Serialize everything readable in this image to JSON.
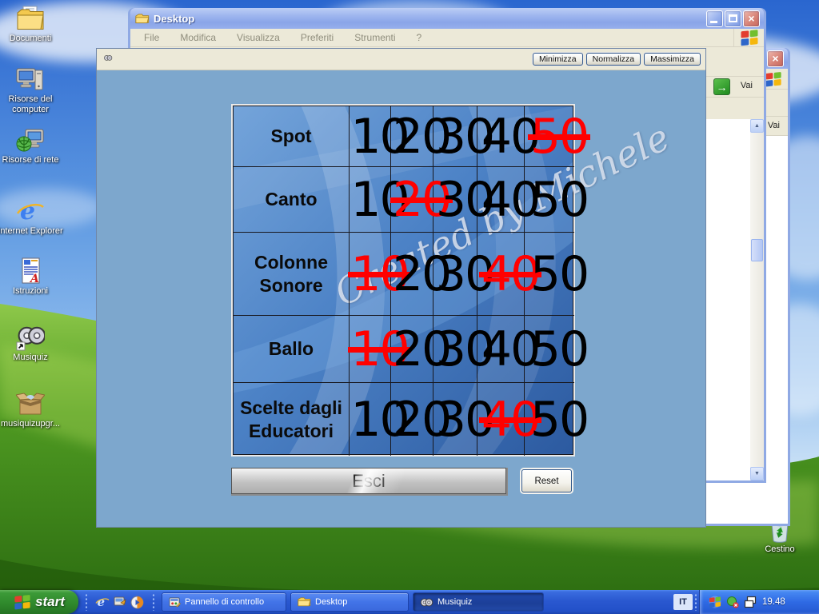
{
  "desktop": {
    "icons": [
      {
        "label": "Documenti"
      },
      {
        "label": "Risorse del computer"
      },
      {
        "label": "Risorse di rete"
      },
      {
        "label": "Internet Explorer"
      },
      {
        "label": "Istruzioni"
      },
      {
        "label": "Musiquiz"
      },
      {
        "label": "musiquizupgr..."
      }
    ],
    "recycle_bin_label": "Cestino"
  },
  "explorer_window": {
    "title": "Desktop",
    "menu_items": [
      "File",
      "Modifica",
      "Visualizza",
      "Preferiti",
      "Strumenti",
      "?"
    ],
    "go_button_label": "Vai"
  },
  "panel_window": {
    "go_button_label": "Vai"
  },
  "musiquiz_window": {
    "window_buttons": {
      "minimize": "Minimizza",
      "restore": "Normalizza",
      "maximize": "Massimizza"
    },
    "board": {
      "values": [
        "10",
        "20",
        "30",
        "40",
        "50"
      ],
      "rows": [
        {
          "category": "Spot",
          "used": [
            false,
            false,
            false,
            false,
            true
          ]
        },
        {
          "category": "Canto",
          "used": [
            false,
            true,
            false,
            false,
            false
          ]
        },
        {
          "category": "Colonne Sonore",
          "used": [
            true,
            false,
            false,
            true,
            false
          ]
        },
        {
          "category": "Ballo",
          "used": [
            true,
            false,
            false,
            false,
            false
          ]
        },
        {
          "category": "Scelte dagli Educatori",
          "used": [
            false,
            false,
            false,
            true,
            false
          ]
        }
      ],
      "watermark": "Created by Michele",
      "normal_color": "#000000",
      "used_color": "#ff0000"
    },
    "exit_button_label": "Esci",
    "reset_button_label": "Reset"
  },
  "taskbar": {
    "start_label": "start",
    "tasks": [
      {
        "label": "Pannello di controllo",
        "active": false
      },
      {
        "label": "Desktop",
        "active": false
      },
      {
        "label": "Musiquiz",
        "active": true
      }
    ],
    "language_indicator": "IT",
    "clock": "19.48"
  }
}
